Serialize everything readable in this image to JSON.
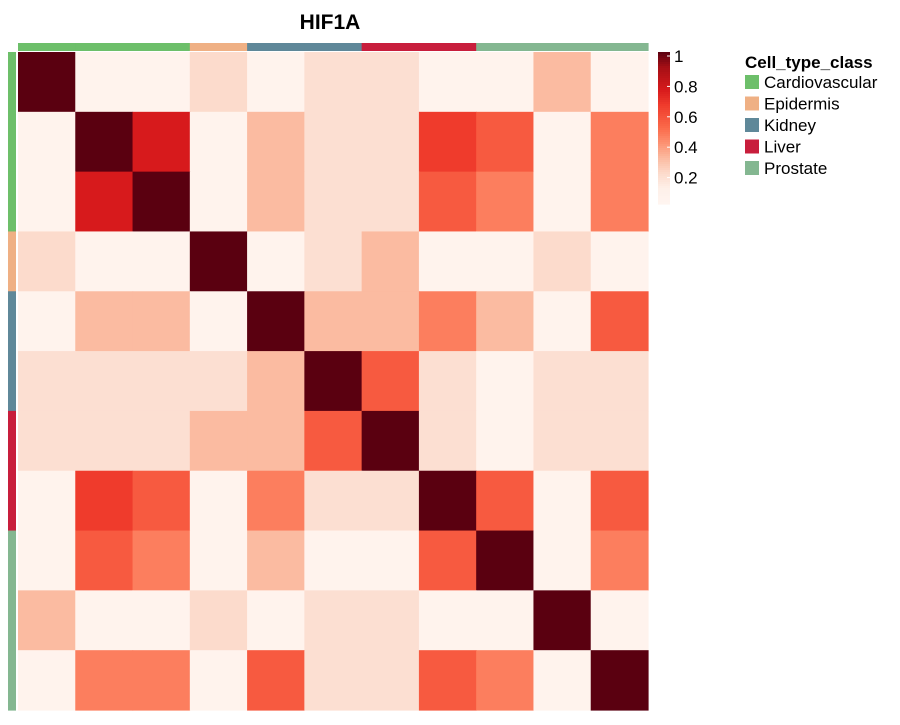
{
  "chart_data": {
    "type": "heatmap",
    "title": "HIF1A",
    "n": 11,
    "cell_groups": [
      "Cardiovascular",
      "Cardiovascular",
      "Cardiovascular",
      "Epidermis",
      "Kidney",
      "Kidney",
      "Liver",
      "Liver",
      "Prostate",
      "Prostate",
      "Prostate"
    ],
    "values": [
      [
        1.0,
        0.05,
        0.05,
        0.2,
        0.05,
        0.18,
        0.18,
        0.05,
        0.05,
        0.3,
        0.05
      ],
      [
        0.05,
        1.0,
        0.75,
        0.05,
        0.3,
        0.18,
        0.18,
        0.65,
        0.55,
        0.05,
        0.45
      ],
      [
        0.05,
        0.75,
        1.0,
        0.05,
        0.3,
        0.18,
        0.18,
        0.55,
        0.45,
        0.05,
        0.45
      ],
      [
        0.2,
        0.05,
        0.05,
        1.0,
        0.05,
        0.18,
        0.3,
        0.05,
        0.05,
        0.2,
        0.05
      ],
      [
        0.05,
        0.3,
        0.3,
        0.05,
        1.0,
        0.3,
        0.3,
        0.45,
        0.3,
        0.05,
        0.55
      ],
      [
        0.18,
        0.18,
        0.18,
        0.18,
        0.3,
        1.0,
        0.55,
        0.18,
        0.05,
        0.18,
        0.18
      ],
      [
        0.18,
        0.18,
        0.18,
        0.3,
        0.3,
        0.55,
        1.0,
        0.18,
        0.05,
        0.18,
        0.18
      ],
      [
        0.05,
        0.65,
        0.55,
        0.05,
        0.45,
        0.18,
        0.18,
        1.0,
        0.55,
        0.05,
        0.55
      ],
      [
        0.05,
        0.55,
        0.45,
        0.05,
        0.3,
        0.05,
        0.05,
        0.55,
        1.0,
        0.05,
        0.45
      ],
      [
        0.3,
        0.05,
        0.05,
        0.2,
        0.05,
        0.18,
        0.18,
        0.05,
        0.05,
        1.0,
        0.05
      ],
      [
        0.05,
        0.45,
        0.45,
        0.05,
        0.55,
        0.18,
        0.18,
        0.55,
        0.45,
        0.05,
        1.0
      ]
    ],
    "colorbar": {
      "ticks": [
        1,
        0.8,
        0.6,
        0.4,
        0.2
      ],
      "tick_labels": [
        "1",
        "0.8",
        "0.6",
        "0.4",
        "0.2"
      ],
      "range": [
        0,
        1
      ]
    },
    "legend": {
      "title": "Cell_type_class",
      "placement": "right",
      "items": [
        {
          "label": "Cardiovascular",
          "color": "#6DBF6A"
        },
        {
          "label": "Epidermis",
          "color": "#EFB084"
        },
        {
          "label": "Kidney",
          "color": "#5F8899"
        },
        {
          "label": "Liver",
          "color": "#C81E3C"
        },
        {
          "label": "Prostate",
          "color": "#84B791"
        }
      ]
    }
  }
}
